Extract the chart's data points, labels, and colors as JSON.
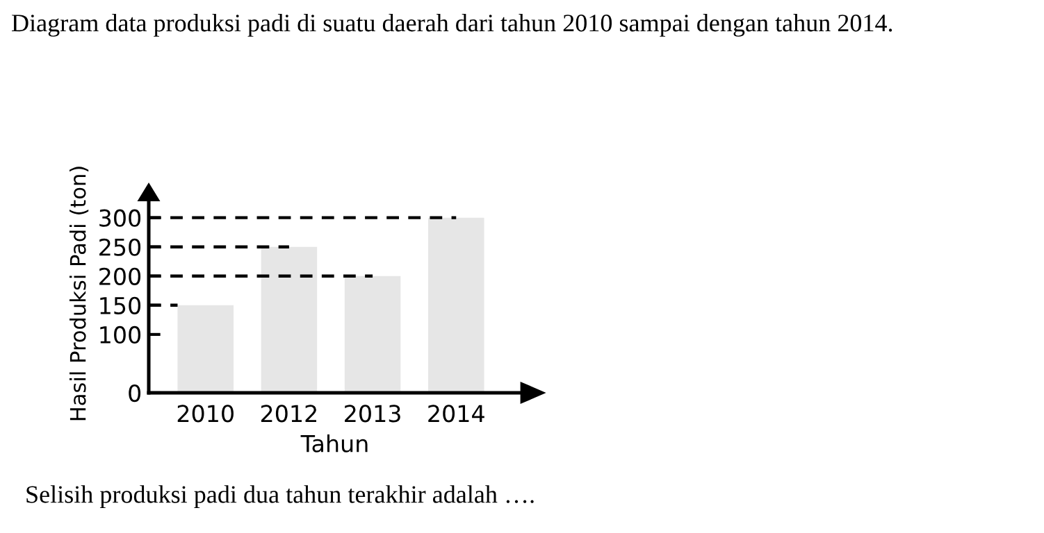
{
  "chart_data": {
    "type": "bar",
    "title": "Diagram data produksi padi di suatu daerah dari tahun 2010 sampai dengan tahun 2014.",
    "xlabel": "Tahun",
    "ylabel": "Hasil Produksi Padi (ton)",
    "categories": [
      "2010",
      "2012",
      "2013",
      "2014"
    ],
    "values": [
      150,
      250,
      200,
      300
    ],
    "color": "#e6e6e6",
    "ylim": [
      0,
      340
    ],
    "yticks": [
      0,
      100,
      150,
      200,
      250,
      300
    ],
    "grid": false,
    "ref_lines": [
      {
        "axis": "y",
        "value": 150,
        "line_style": "dashed",
        "color": "#000000"
      },
      {
        "axis": "y",
        "value": 200,
        "line_style": "dashed",
        "color": "#000000"
      },
      {
        "axis": "y",
        "value": 250,
        "line_style": "dashed",
        "color": "#000000"
      },
      {
        "axis": "y",
        "value": 300,
        "line_style": "dashed",
        "color": "#000000"
      }
    ],
    "annotations": [
      "Selisih produksi padi dua tahun terakhir adalah …."
    ]
  }
}
